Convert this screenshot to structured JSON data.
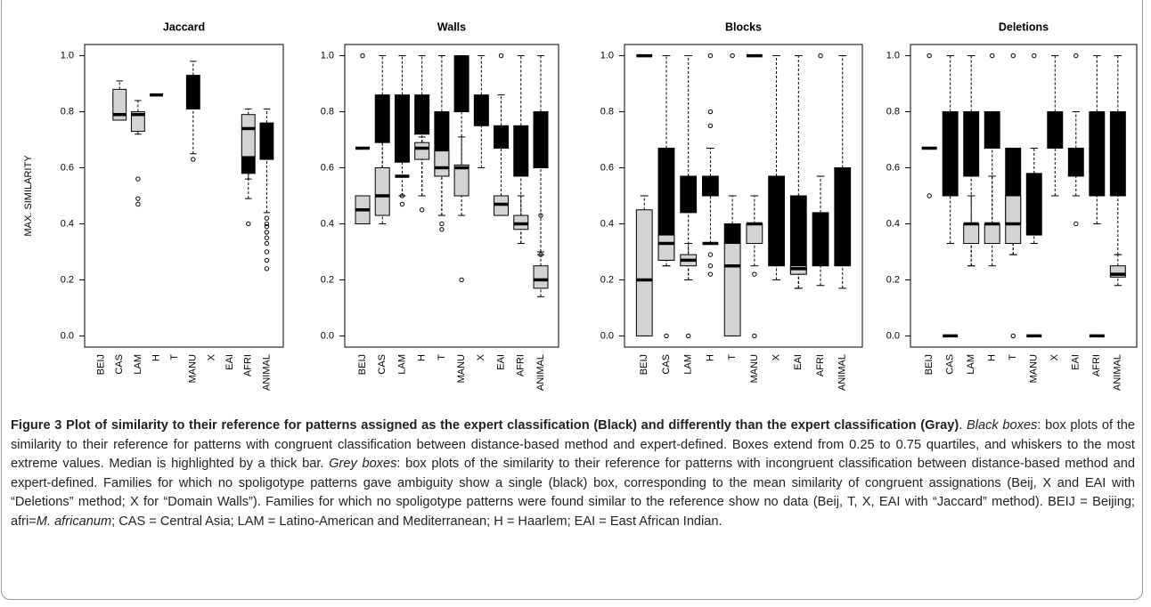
{
  "chart_data": [
    {
      "type": "box",
      "title": "Jaccard",
      "ylabel": "MAX. SIMILARITY",
      "categories": [
        "BEIJ",
        "CAS",
        "LAM",
        "H",
        "T",
        "MANU",
        "X",
        "EAI",
        "AFRI",
        "ANIMAL"
      ],
      "ylim": [
        -0.04,
        1.04
      ],
      "yticks": [
        {
          "value": 0,
          "label": "0.0"
        },
        {
          "value": 0.2,
          "label": "0.2"
        },
        {
          "value": 0.4,
          "label": "0.4"
        },
        {
          "value": 0.6,
          "label": "0.6"
        },
        {
          "value": 0.8,
          "label": "0.8"
        },
        {
          "value": 1,
          "label": "1.0"
        }
      ],
      "series": [
        {
          "color": "#000000",
          "boxes": [
            null,
            null,
            null,
            {
              "low": 0.86,
              "q1": 0.86,
              "median": 0.86,
              "q3": 0.86,
              "high": 0.86,
              "fliers": []
            },
            null,
            {
              "low": 0.65,
              "q1": 0.81,
              "median": 0.84,
              "q3": 0.93,
              "high": 0.98,
              "fliers": [
                0.63
              ]
            },
            null,
            null,
            {
              "low": 0.56,
              "q1": 0.58,
              "median": 0.6,
              "q3": 0.64,
              "high": 0.64,
              "fliers": []
            },
            {
              "low": 0.44,
              "q1": 0.63,
              "median": 0.66,
              "q3": 0.76,
              "high": 0.81,
              "fliers": [
                0.42,
                0.4,
                0.39,
                0.37,
                0.35,
                0.33,
                0.3,
                0.27,
                0.24
              ]
            }
          ]
        },
        {
          "color": "#d3d3d3",
          "boxes": [
            null,
            {
              "low": 0.77,
              "q1": 0.77,
              "median": 0.79,
              "q3": 0.88,
              "high": 0.91,
              "fliers": []
            },
            {
              "low": 0.72,
              "q1": 0.73,
              "median": 0.79,
              "q3": 0.8,
              "high": 0.84,
              "fliers": [
                0.56,
                0.49,
                0.47
              ]
            },
            null,
            null,
            null,
            null,
            null,
            {
              "low": 0.49,
              "q1": 0.64,
              "median": 0.74,
              "q3": 0.79,
              "high": 0.81,
              "fliers": [
                0.4
              ]
            },
            null
          ]
        }
      ]
    },
    {
      "type": "box",
      "title": "Walls",
      "categories": [
        "BEIJ",
        "CAS",
        "LAM",
        "H",
        "T",
        "MANU",
        "X",
        "EAI",
        "AFRI",
        "ANIMAL"
      ],
      "ylim": [
        -0.04,
        1.04
      ],
      "yticks": [
        {
          "value": 0,
          "label": "0.0"
        },
        {
          "value": 0.2,
          "label": "0.2"
        },
        {
          "value": 0.4,
          "label": "0.4"
        },
        {
          "value": 0.6,
          "label": "0.6"
        },
        {
          "value": 0.8,
          "label": "0.8"
        },
        {
          "value": 1,
          "label": "1.0"
        }
      ],
      "series": [
        {
          "color": "#000000",
          "boxes": [
            {
              "low": 0.67,
              "q1": 0.67,
              "median": 0.67,
              "q3": 0.67,
              "high": 0.67,
              "fliers": []
            },
            {
              "low": 0.6,
              "q1": 0.69,
              "median": 0.75,
              "q3": 0.86,
              "high": 1,
              "fliers": []
            },
            {
              "low": 0.5,
              "q1": 0.62,
              "median": 0.75,
              "q3": 0.86,
              "high": 1,
              "fliers": [
                0.5,
                0.47
              ]
            },
            {
              "low": 0.5,
              "q1": 0.72,
              "median": 0.8,
              "q3": 0.86,
              "high": 1,
              "fliers": []
            },
            {
              "low": 0.43,
              "q1": 0.57,
              "median": 0.67,
              "q3": 0.8,
              "high": 1,
              "fliers": []
            },
            {
              "low": 0.6,
              "q1": 0.8,
              "median": 0.9,
              "q3": 1,
              "high": 1,
              "fliers": []
            },
            {
              "low": 0.6,
              "q1": 0.75,
              "median": 0.8,
              "q3": 0.86,
              "high": 1,
              "fliers": []
            },
            {
              "low": 0.5,
              "q1": 0.67,
              "median": 0.71,
              "q3": 0.75,
              "high": 0.86,
              "fliers": [
                1
              ]
            },
            {
              "low": 0.33,
              "q1": 0.57,
              "median": 0.67,
              "q3": 0.75,
              "high": 1,
              "fliers": []
            },
            {
              "low": 0.3,
              "q1": 0.6,
              "median": 0.67,
              "q3": 0.8,
              "high": 1,
              "fliers": [
                0.43,
                0.29
              ]
            }
          ]
        },
        {
          "color": "#d3d3d3",
          "boxes": [
            {
              "low": 0.4,
              "q1": 0.4,
              "median": 0.45,
              "q3": 0.5,
              "high": 0.5,
              "fliers": [
                1
              ]
            },
            {
              "low": 0.4,
              "q1": 0.43,
              "median": 0.5,
              "q3": 0.6,
              "high": 0.75,
              "fliers": []
            },
            {
              "low": 0.57,
              "q1": 0.57,
              "median": 0.57,
              "q3": 0.57,
              "high": 0.57,
              "fliers": []
            },
            {
              "low": 0.5,
              "q1": 0.63,
              "median": 0.67,
              "q3": 0.69,
              "high": 0.71,
              "fliers": [
                0.45
              ]
            },
            {
              "low": 0.43,
              "q1": 0.57,
              "median": 0.6,
              "q3": 0.66,
              "high": 0.67,
              "fliers": [
                0.4,
                0.38
              ]
            },
            {
              "low": 0.43,
              "q1": 0.5,
              "median": 0.6,
              "q3": 0.61,
              "high": 0.71,
              "fliers": [
                0.2
              ]
            },
            null,
            {
              "low": 0.43,
              "q1": 0.43,
              "median": 0.47,
              "q3": 0.5,
              "high": 0.5,
              "fliers": []
            },
            {
              "low": 0.33,
              "q1": 0.38,
              "median": 0.4,
              "q3": 0.43,
              "high": 0.5,
              "fliers": []
            },
            {
              "low": 0.14,
              "q1": 0.17,
              "median": 0.2,
              "q3": 0.25,
              "high": 0.29,
              "fliers": []
            }
          ]
        }
      ]
    },
    {
      "type": "box",
      "title": "Blocks",
      "categories": [
        "BEIJ",
        "CAS",
        "LAM",
        "H",
        "T",
        "MANU",
        "X",
        "EAI",
        "AFRI",
        "ANIMAL"
      ],
      "ylim": [
        -0.04,
        1.04
      ],
      "yticks": [
        {
          "value": 0,
          "label": "0.0"
        },
        {
          "value": 0.2,
          "label": "0.2"
        },
        {
          "value": 0.4,
          "label": "0.4"
        },
        {
          "value": 0.6,
          "label": "0.6"
        },
        {
          "value": 0.8,
          "label": "0.8"
        },
        {
          "value": 1,
          "label": "1.0"
        }
      ],
      "series": [
        {
          "color": "#000000",
          "boxes": [
            {
              "low": 1,
              "q1": 1,
              "median": 1,
              "q3": 1,
              "high": 1,
              "fliers": []
            },
            {
              "low": 0.25,
              "q1": 0.27,
              "median": 0.4,
              "q3": 0.67,
              "high": 1,
              "fliers": []
            },
            {
              "low": 0.2,
              "q1": 0.44,
              "median": 0.5,
              "q3": 0.57,
              "high": 1,
              "fliers": []
            },
            {
              "low": 0.33,
              "q1": 0.5,
              "median": 0.55,
              "q3": 0.57,
              "high": 0.67,
              "fliers": [
                1,
                0.8,
                0.75
              ]
            },
            {
              "low": 0,
              "q1": 0.33,
              "median": 0.36,
              "q3": 0.4,
              "high": 0.5,
              "fliers": [
                1
              ]
            },
            {
              "low": 1,
              "q1": 1,
              "median": 1,
              "q3": 1,
              "high": 1,
              "fliers": []
            },
            {
              "low": 0.2,
              "q1": 0.25,
              "median": 0.4,
              "q3": 0.57,
              "high": 1,
              "fliers": []
            },
            {
              "low": 0.17,
              "q1": 0.22,
              "median": 0.33,
              "q3": 0.5,
              "high": 1,
              "fliers": []
            },
            {
              "low": 0.18,
              "q1": 0.25,
              "median": 0.33,
              "q3": 0.44,
              "high": 0.57,
              "fliers": [
                1
              ]
            },
            {
              "low": 0.17,
              "q1": 0.25,
              "median": 0.4,
              "q3": 0.6,
              "high": 1,
              "fliers": []
            }
          ]
        },
        {
          "color": "#d3d3d3",
          "boxes": [
            {
              "low": 0,
              "q1": 0,
              "median": 0.2,
              "q3": 0.45,
              "high": 0.5,
              "fliers": []
            },
            {
              "low": 0.25,
              "q1": 0.27,
              "median": 0.33,
              "q3": 0.36,
              "high": 0.4,
              "fliers": [
                0
              ]
            },
            {
              "low": 0.2,
              "q1": 0.25,
              "median": 0.27,
              "q3": 0.29,
              "high": 0.33,
              "fliers": [
                0
              ]
            },
            {
              "low": 0.33,
              "q1": 0.33,
              "median": 0.33,
              "q3": 0.33,
              "high": 0.33,
              "fliers": [
                0.29,
                0.25,
                0.22
              ]
            },
            {
              "low": 0,
              "q1": 0,
              "median": 0.25,
              "q3": 0.33,
              "high": 0.4,
              "fliers": []
            },
            {
              "low": 0.25,
              "q1": 0.33,
              "median": 0.4,
              "q3": 0.4,
              "high": 0.5,
              "fliers": [
                0.22,
                0
              ]
            },
            null,
            {
              "low": 0.17,
              "q1": 0.22,
              "median": 0.24,
              "q3": 0.25,
              "high": 0.29,
              "fliers": []
            },
            null,
            null
          ]
        }
      ]
    },
    {
      "type": "box",
      "title": "Deletions",
      "categories": [
        "BEIJ",
        "CAS",
        "LAM",
        "H",
        "T",
        "MANU",
        "X",
        "EAI",
        "AFRI",
        "ANIMAL"
      ],
      "ylim": [
        -0.04,
        1.04
      ],
      "yticks": [
        {
          "value": 0,
          "label": "0.0"
        },
        {
          "value": 0.2,
          "label": "0.2"
        },
        {
          "value": 0.4,
          "label": "0.4"
        },
        {
          "value": 0.6,
          "label": "0.6"
        },
        {
          "value": 0.8,
          "label": "0.8"
        },
        {
          "value": 1,
          "label": "1.0"
        }
      ],
      "series": [
        {
          "color": "#000000",
          "boxes": [
            {
              "low": 0.67,
              "q1": 0.67,
              "median": 0.67,
              "q3": 0.67,
              "high": 0.67,
              "fliers": [
                1,
                0.5
              ]
            },
            {
              "low": 0.33,
              "q1": 0.5,
              "median": 0.67,
              "q3": 0.8,
              "high": 1,
              "fliers": []
            },
            {
              "low": 0.25,
              "q1": 0.57,
              "median": 0.67,
              "q3": 0.8,
              "high": 1,
              "fliers": []
            },
            {
              "low": 0.4,
              "q1": 0.67,
              "median": 0.75,
              "q3": 0.8,
              "high": 0.8,
              "fliers": [
                1
              ]
            },
            {
              "low": 0.29,
              "q1": 0.4,
              "median": 0.5,
              "q3": 0.67,
              "high": 0.67,
              "fliers": [
                1,
                0
              ]
            },
            {
              "low": 0.33,
              "q1": 0.36,
              "median": 0.5,
              "q3": 0.58,
              "high": 0.67,
              "fliers": [
                1
              ]
            },
            {
              "low": 0.5,
              "q1": 0.67,
              "median": 0.75,
              "q3": 0.8,
              "high": 1,
              "fliers": []
            },
            {
              "low": 0.5,
              "q1": 0.57,
              "median": 0.6,
              "q3": 0.67,
              "high": 0.8,
              "fliers": [
                1,
                0.4
              ]
            },
            {
              "low": 0.4,
              "q1": 0.5,
              "median": 0.67,
              "q3": 0.8,
              "high": 1,
              "fliers": []
            },
            {
              "low": 0.29,
              "q1": 0.5,
              "median": 0.67,
              "q3": 0.8,
              "high": 1,
              "fliers": []
            }
          ]
        },
        {
          "color": "#d3d3d3",
          "boxes": [
            null,
            {
              "low": 0,
              "q1": 0,
              "median": 0,
              "q3": 0,
              "high": 0,
              "fliers": []
            },
            {
              "low": 0.25,
              "q1": 0.33,
              "median": 0.4,
              "q3": 0.4,
              "high": 0.5,
              "fliers": []
            },
            {
              "low": 0.25,
              "q1": 0.33,
              "median": 0.4,
              "q3": 0.4,
              "high": 0.57,
              "fliers": []
            },
            {
              "low": 0.29,
              "q1": 0.33,
              "median": 0.4,
              "q3": 0.5,
              "high": 0.5,
              "fliers": []
            },
            {
              "low": 0,
              "q1": 0,
              "median": 0,
              "q3": 0,
              "high": 0,
              "fliers": []
            },
            null,
            null,
            {
              "low": 0,
              "q1": 0,
              "median": 0,
              "q3": 0,
              "high": 0,
              "fliers": []
            },
            {
              "low": 0.18,
              "q1": 0.21,
              "median": 0.22,
              "q3": 0.25,
              "high": 0.29,
              "fliers": []
            }
          ]
        }
      ]
    }
  ],
  "caption": [
    {
      "text": "Figure 3 Plot of similarity to their reference for patterns assigned as the expert classification (Black) and differently than the expert classification (Gray)",
      "style": "bold"
    },
    {
      "text": ". ",
      "style": "normal"
    },
    {
      "text": "Black boxes",
      "style": "italic"
    },
    {
      "text": ": box plots of the similarity to their reference for patterns with congruent classification between distance-based method and expert-defined. Boxes extend from 0.25 to 0.75 quartiles, and whiskers to the most extreme values. Median is highlighted by a thick bar. ",
      "style": "normal"
    },
    {
      "text": "Grey boxes",
      "style": "italic"
    },
    {
      "text": ": box plots of the similarity to their reference for patterns with incongruent classification between distance-based method and expert-defined. Families for which no spoligotype patterns gave ambiguity show a single (black) box, corresponding to the mean similarity of congruent assignations (Beij, X and EAI with “Deletions” method; X for “Domain Walls”). Families for which no spoligotype patterns were found similar to the reference show no data (Beij, T, X, EAI with “Jaccard” method). BEIJ = Beijing; afri=",
      "style": "normal"
    },
    {
      "text": "M. africanum",
      "style": "italic"
    },
    {
      "text": "; CAS = Central Asia; LAM = Latino-American and Mediterranean; H = Haarlem; EAI = East African Indian.",
      "style": "normal"
    }
  ]
}
